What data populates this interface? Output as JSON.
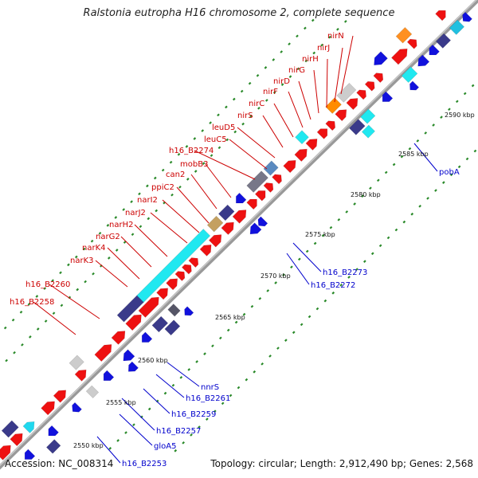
{
  "title": "Ralstonia eutropha H16 chromosome 2, complete sequence",
  "footer": {
    "accession": "Accession: NC_008314",
    "summary": "Topology: circular; Length: 2,912,490 bp; Genes: 2,568"
  },
  "colors": {
    "forward_label": "#cc0000",
    "reverse_label": "#0000cc",
    "forward_gene": "#ee1111",
    "reverse_gene": "#1111dd",
    "backbone": "#999999",
    "tick_dots": "#2a8a2a"
  },
  "scale_ticks": [
    "2550 kbp",
    "2555 kbp",
    "2560 kbp",
    "2565 kbp",
    "2570 kbp",
    "2575 kbp",
    "2580 kbp",
    "2585 kbp",
    "2590 kbp"
  ],
  "forward_labels": [
    "h16_B2258",
    "h16_B2260",
    "narK3",
    "narK4",
    "narG2",
    "narH2",
    "narJ2",
    "narI2",
    "ppiC2",
    "can2",
    "mobB3",
    "h16_B2274",
    "leuC5",
    "leuD5",
    "nirS",
    "nirC",
    "nirF",
    "nirD",
    "nirG",
    "nirH",
    "nirJ",
    "nirN"
  ],
  "reverse_labels": [
    "h16_B2253",
    "gloA5",
    "h16_B2257",
    "h16_B2259",
    "h16_B2261",
    "nnrS",
    "h16_B2272",
    "h16_B2273",
    "pobA"
  ]
}
